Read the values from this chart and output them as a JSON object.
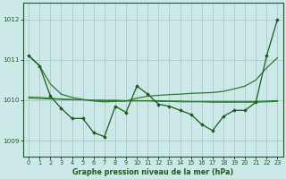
{
  "title": "Graphe pression niveau de la mer (hPa)",
  "background_color": "#cce8e8",
  "grid_color": "#aacfcf",
  "line_color_dark": "#1a5c1a",
  "line_color_mid": "#2d7a2d",
  "xlim": [
    -0.5,
    23.5
  ],
  "ylim": [
    1008.6,
    1012.4
  ],
  "yticks": [
    1009,
    1010,
    1011,
    1012
  ],
  "xticks": [
    0,
    1,
    2,
    3,
    4,
    5,
    6,
    7,
    8,
    9,
    10,
    11,
    12,
    13,
    14,
    15,
    16,
    17,
    18,
    19,
    20,
    21,
    22,
    23
  ],
  "main_series": [
    1011.1,
    1010.85,
    1010.1,
    1009.8,
    1009.55,
    1009.55,
    1009.2,
    1009.1,
    1009.85,
    1009.7,
    1010.35,
    1010.15,
    1009.9,
    1009.85,
    1009.75,
    1009.65,
    1009.4,
    1009.25,
    1009.6,
    1009.75,
    1009.75,
    1009.95,
    1011.1,
    1012.0
  ],
  "diagonal_line": [
    1011.1,
    1010.85,
    1010.4,
    1010.15,
    1010.07,
    1010.02,
    1009.98,
    1009.96,
    1009.97,
    1009.98,
    1010.05,
    1010.1,
    1010.12,
    1010.14,
    1010.15,
    1010.17,
    1010.18,
    1010.19,
    1010.22,
    1010.28,
    1010.35,
    1010.5,
    1010.8,
    1011.05
  ],
  "flat_line1": [
    1010.05,
    1010.04,
    1010.03,
    1010.02,
    1010.01,
    1010.01,
    1010.0,
    1010.0,
    1010.0,
    1009.99,
    1009.99,
    1009.99,
    1009.99,
    1009.98,
    1009.98,
    1009.97,
    1009.97,
    1009.97,
    1009.97,
    1009.97,
    1009.97,
    1009.97,
    1009.98,
    1009.99
  ],
  "flat_line2": [
    1010.08,
    1010.07,
    1010.05,
    1010.03,
    1010.02,
    1010.01,
    1010.0,
    1009.99,
    1009.99,
    1009.98,
    1009.98,
    1009.98,
    1009.97,
    1009.97,
    1009.96,
    1009.96,
    1009.96,
    1009.95,
    1009.95,
    1009.95,
    1009.95,
    1009.95,
    1009.96,
    1009.97
  ]
}
